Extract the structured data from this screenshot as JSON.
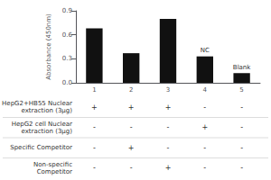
{
  "chart_data": {
    "type": "bar",
    "categories": [
      "1",
      "2",
      "3",
      "4",
      "5"
    ],
    "values": [
      0.68,
      0.37,
      0.8,
      0.33,
      0.12
    ],
    "color": "#111111",
    "ylabel": "Absorbance (450nm)",
    "ylim": [
      0.0,
      0.9
    ],
    "yticks": [
      {
        "value": 0.0,
        "label": "0.0"
      },
      0.3,
      0.6,
      0.9
    ],
    "grid": false,
    "annotations": [
      {
        "text": "NC",
        "category": "4"
      },
      {
        "text": "Blank",
        "category": "5"
      }
    ],
    "table": {
      "rows": [
        {
          "label": "HepG2+HB55 Nuclear\nextraction (3μg)",
          "values": [
            "+",
            "+",
            "+",
            "-",
            "-"
          ]
        },
        {
          "label": "HepG2 cell Nuclear\nextraction (3μg)",
          "values": [
            "-",
            "-",
            "-",
            "+",
            "-"
          ]
        },
        {
          "label": "Specific Competitor",
          "values": [
            "-",
            "+",
            "-",
            "-",
            "-"
          ]
        },
        {
          "label": "Non-specific\nCompetitor",
          "values": [
            "-",
            "-",
            "+",
            "-",
            "-"
          ]
        }
      ]
    }
  }
}
